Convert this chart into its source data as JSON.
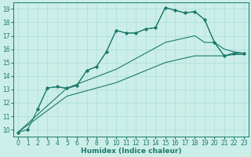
{
  "background_color": "#cceee8",
  "grid_color": "#aadddd",
  "line_color": "#1a7a6a",
  "xlabel": "Humidex (Indice chaleur)",
  "xlabel_fontsize": 6.5,
  "tick_fontsize": 5.5,
  "xlim": [
    -0.5,
    23.5
  ],
  "ylim": [
    9.5,
    19.5
  ],
  "yticks": [
    10,
    11,
    12,
    13,
    14,
    15,
    16,
    17,
    18,
    19
  ],
  "xticks": [
    0,
    1,
    2,
    3,
    4,
    5,
    6,
    7,
    8,
    9,
    10,
    11,
    12,
    13,
    14,
    15,
    16,
    17,
    18,
    19,
    20,
    21,
    22,
    23
  ],
  "line1_x": [
    0,
    1,
    2,
    3,
    4,
    5,
    6,
    7,
    8,
    9,
    10,
    11,
    12,
    13,
    14,
    15,
    16,
    17,
    18,
    19,
    20,
    21,
    22,
    23
  ],
  "line1_y": [
    9.8,
    10.0,
    11.5,
    13.1,
    13.2,
    13.1,
    13.3,
    14.4,
    14.7,
    15.8,
    17.4,
    17.2,
    17.2,
    17.5,
    17.6,
    19.1,
    18.9,
    18.7,
    18.8,
    18.2,
    16.5,
    15.5,
    15.7,
    15.7
  ],
  "line2_x": [
    2,
    3,
    4,
    5,
    6,
    7,
    8,
    9,
    10,
    11,
    12,
    13,
    14,
    15,
    16,
    17,
    18,
    19,
    20,
    21,
    22,
    23
  ],
  "line2_y": [
    11.5,
    13.1,
    13.2,
    13.05,
    13.3,
    14.4,
    14.7,
    15.8,
    17.4,
    17.2,
    17.2,
    17.5,
    17.6,
    19.1,
    18.9,
    18.7,
    18.8,
    18.2,
    16.5,
    15.5,
    15.7,
    15.7
  ],
  "line3_x": [
    0,
    5,
    10,
    15,
    18,
    19,
    20,
    21,
    22,
    23
  ],
  "line3_y": [
    9.8,
    13.1,
    14.5,
    16.5,
    17.0,
    16.5,
    16.5,
    16.0,
    15.8,
    15.7
  ],
  "line4_x": [
    0,
    5,
    10,
    15,
    18,
    19,
    20,
    21,
    22,
    23
  ],
  "line4_y": [
    9.8,
    12.5,
    13.5,
    15.0,
    15.5,
    15.5,
    15.5,
    15.5,
    15.6,
    15.6
  ]
}
